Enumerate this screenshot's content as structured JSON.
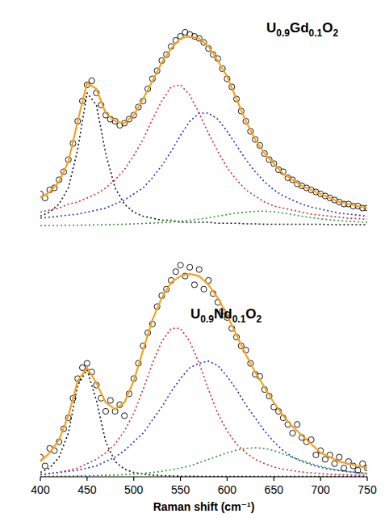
{
  "chart_data": [
    {
      "type": "line",
      "title": "U0.9Gd0.1O2",
      "xlim": [
        400,
        750
      ],
      "ylim": [
        0,
        100
      ],
      "tick_labels": false,
      "series": [
        {
          "type": "line",
          "line_style": "dotted",
          "color": "#111111",
          "x": [
            400,
            410,
            420,
            430,
            440,
            450,
            460,
            470,
            480,
            490,
            500,
            510,
            520,
            530,
            540,
            550,
            560,
            570,
            580,
            590,
            600,
            610,
            620,
            630,
            640,
            650,
            660,
            670,
            680,
            690,
            700,
            710,
            720,
            730,
            740,
            750
          ],
          "values": [
            5,
            7,
            11,
            19,
            38,
            66,
            60,
            36,
            19,
            11,
            7,
            5,
            4,
            3,
            3,
            2,
            2,
            2,
            2,
            1.5,
            1.5,
            1.5,
            1.2,
            1.2,
            1,
            1,
            1,
            1,
            1,
            1,
            1,
            0.8,
            0.8,
            0.8,
            0.8,
            0.8
          ]
        },
        {
          "type": "line",
          "line_style": "dotted",
          "color": "#e8202a",
          "x": [
            400,
            410,
            420,
            430,
            440,
            450,
            460,
            470,
            480,
            490,
            500,
            510,
            520,
            530,
            540,
            550,
            560,
            570,
            580,
            590,
            600,
            610,
            620,
            630,
            640,
            650,
            660,
            670,
            680,
            690,
            700,
            710,
            720,
            730,
            740,
            750
          ],
          "values": [
            7,
            8,
            9,
            11,
            12,
            14,
            16,
            19,
            23,
            28,
            35,
            43,
            53,
            62,
            69,
            70,
            65,
            56,
            46,
            37,
            29,
            23,
            18,
            15,
            12,
            10,
            9,
            8,
            7,
            6,
            5.5,
            5,
            4.5,
            4,
            3.8,
            3.5
          ]
        },
        {
          "type": "line",
          "line_style": "dotted",
          "color": "#1f2fd8",
          "x": [
            400,
            410,
            420,
            430,
            440,
            450,
            460,
            470,
            480,
            490,
            500,
            510,
            520,
            530,
            540,
            550,
            560,
            570,
            580,
            590,
            600,
            610,
            620,
            630,
            640,
            650,
            660,
            670,
            680,
            690,
            700,
            710,
            720,
            730,
            740,
            750
          ],
          "values": [
            4,
            4.5,
            5,
            5.5,
            6,
            7,
            8,
            9,
            11,
            13,
            16,
            19,
            24,
            30,
            37,
            45,
            52,
            56,
            56,
            53,
            47,
            40,
            33,
            27,
            22,
            18,
            15,
            13,
            11,
            9.5,
            8.5,
            7.5,
            6.5,
            6,
            5.5,
            5
          ]
        },
        {
          "type": "line",
          "line_style": "dotted",
          "color": "#2a9a2a",
          "x": [
            400,
            410,
            420,
            430,
            440,
            450,
            460,
            470,
            480,
            490,
            500,
            510,
            520,
            530,
            540,
            550,
            560,
            570,
            580,
            590,
            600,
            610,
            620,
            630,
            640,
            650,
            660,
            670,
            680,
            690,
            700,
            710,
            720,
            730,
            740,
            750
          ],
          "values": [
            0.3,
            0.4,
            0.4,
            0.5,
            0.5,
            0.6,
            0.7,
            0.8,
            0.9,
            1,
            1.2,
            1.4,
            1.6,
            1.8,
            2.1,
            2.5,
            3,
            3.5,
            4.2,
            5,
            5.8,
            6.5,
            7,
            7.4,
            7.5,
            7.2,
            6.5,
            5.8,
            5,
            4.3,
            3.7,
            3.2,
            2.8,
            2.5,
            2.2,
            2
          ]
        },
        {
          "type": "scatter",
          "marker": "circle",
          "color": "#000000",
          "x": [
            400,
            405,
            410,
            415,
            420,
            425,
            430,
            435,
            440,
            445,
            450,
            455,
            460,
            465,
            470,
            475,
            480,
            485,
            490,
            495,
            500,
            505,
            510,
            515,
            520,
            525,
            530,
            535,
            540,
            545,
            550,
            555,
            560,
            565,
            570,
            575,
            580,
            585,
            590,
            595,
            600,
            605,
            610,
            615,
            620,
            625,
            630,
            635,
            640,
            645,
            650,
            655,
            660,
            665,
            670,
            675,
            680,
            685,
            690,
            695,
            700,
            705,
            710,
            715,
            720,
            725,
            730,
            735,
            740,
            745,
            750
          ],
          "values": [
            16,
            14,
            18,
            19,
            23,
            27,
            33,
            41,
            52,
            62,
            70,
            72,
            66,
            60,
            55,
            53,
            52,
            50,
            51,
            53,
            55,
            59,
            62,
            68,
            73,
            77,
            82,
            85,
            89,
            92,
            94,
            96,
            95,
            94,
            93,
            91,
            88,
            85,
            83,
            78,
            73,
            69,
            63,
            57,
            52,
            47,
            43,
            40,
            36,
            33,
            31,
            28,
            27,
            24,
            23,
            21,
            20,
            19,
            18,
            17,
            16,
            15,
            14,
            13,
            12,
            11,
            11,
            10,
            10,
            9,
            9
          ]
        },
        {
          "type": "line",
          "line_style": "solid",
          "color": "#f5a31f",
          "x": [
            400,
            410,
            420,
            430,
            440,
            450,
            460,
            470,
            480,
            490,
            500,
            510,
            520,
            530,
            540,
            550,
            560,
            570,
            580,
            590,
            600,
            610,
            620,
            630,
            640,
            650,
            660,
            670,
            680,
            690,
            700,
            710,
            720,
            730,
            740,
            750
          ],
          "values": [
            14,
            17,
            22,
            32,
            52,
            71,
            68,
            56,
            52,
            51,
            55,
            63,
            72,
            81,
            88,
            93,
            94,
            93,
            89,
            82,
            74,
            63,
            52,
            43,
            36,
            31,
            26,
            23,
            20,
            18,
            16,
            14,
            12,
            11,
            10,
            9
          ]
        }
      ]
    },
    {
      "type": "line",
      "title": "U0.9Nd0.1O2",
      "x_label": "Raman shift (cm⁻¹)",
      "xlim": [
        400,
        750
      ],
      "ylim": [
        0,
        100
      ],
      "xticks": [
        400,
        450,
        500,
        550,
        600,
        650,
        700,
        750
      ],
      "tick_labels": "x",
      "series": [
        {
          "type": "line",
          "line_style": "dotted",
          "color": "#111111",
          "x": [
            400,
            410,
            420,
            430,
            440,
            450,
            460,
            470,
            480,
            490,
            500,
            510,
            520,
            530,
            540,
            550,
            560,
            570,
            580,
            590,
            600,
            610,
            620,
            630,
            640,
            650,
            660,
            670,
            680,
            690,
            700,
            710,
            720,
            730,
            740,
            750
          ],
          "values": [
            2,
            4,
            9,
            20,
            42,
            49,
            35,
            16,
            7,
            3.5,
            2,
            1.2,
            0.8,
            0.5,
            0.4,
            0.3,
            0.3,
            0.2,
            0.2,
            0.2,
            0.2,
            0.2,
            0.2,
            0.2,
            0.2,
            0.2,
            0.2,
            0.2,
            0.2,
            0.2,
            0.2,
            0.2,
            0.2,
            0.2,
            0.2,
            0.2
          ]
        },
        {
          "type": "line",
          "line_style": "dotted",
          "color": "#e8202a",
          "x": [
            400,
            410,
            420,
            430,
            440,
            450,
            460,
            470,
            480,
            490,
            500,
            510,
            520,
            530,
            540,
            550,
            560,
            570,
            580,
            590,
            600,
            610,
            620,
            630,
            640,
            650,
            660,
            670,
            680,
            690,
            700,
            710,
            720,
            730,
            740,
            750
          ],
          "values": [
            1,
            1.5,
            2,
            3,
            4,
            6,
            8,
            11,
            15,
            21,
            29,
            40,
            52,
            62,
            68,
            68,
            62,
            52,
            40,
            29,
            21,
            15,
            11,
            8,
            6,
            4.5,
            3.5,
            2.8,
            2.2,
            1.8,
            1.5,
            1.2,
            1,
            0.9,
            0.8,
            0.7
          ]
        },
        {
          "type": "line",
          "line_style": "dotted",
          "color": "#1f2fd8",
          "x": [
            400,
            410,
            420,
            430,
            440,
            450,
            460,
            470,
            480,
            490,
            500,
            510,
            520,
            530,
            540,
            550,
            560,
            570,
            580,
            590,
            600,
            610,
            620,
            630,
            640,
            650,
            660,
            670,
            680,
            690,
            700,
            710,
            720,
            730,
            740,
            750
          ],
          "values": [
            1,
            1.5,
            2,
            2.5,
            3,
            4,
            5,
            7,
            9,
            12,
            16,
            20,
            26,
            32,
            39,
            45,
            50,
            52,
            53,
            51,
            46,
            40,
            33,
            27,
            21,
            16,
            12,
            9,
            7,
            5.5,
            4.3,
            3.5,
            2.8,
            2.3,
            1.9,
            1.6
          ]
        },
        {
          "type": "line",
          "line_style": "dotted",
          "color": "#2a9a2a",
          "x": [
            400,
            410,
            420,
            430,
            440,
            450,
            460,
            470,
            480,
            490,
            500,
            510,
            520,
            530,
            540,
            550,
            560,
            570,
            580,
            590,
            600,
            610,
            620,
            630,
            640,
            650,
            660,
            670,
            680,
            690,
            700,
            710,
            720,
            730,
            740,
            750
          ],
          "values": [
            0.2,
            0.2,
            0.3,
            0.3,
            0.4,
            0.5,
            0.6,
            0.7,
            0.8,
            1,
            1.2,
            1.5,
            2,
            2.5,
            3.2,
            4,
            5,
            6.5,
            8,
            9.5,
            11,
            12.2,
            13,
            13.3,
            13,
            12,
            10.5,
            9,
            7.5,
            6,
            4.8,
            3.8,
            3,
            2.4,
            1.9,
            1.5
          ]
        },
        {
          "type": "scatter",
          "marker": "circle",
          "color": "#000000",
          "x": [
            400,
            405,
            410,
            415,
            420,
            425,
            430,
            435,
            440,
            445,
            450,
            455,
            460,
            465,
            470,
            475,
            480,
            485,
            490,
            495,
            500,
            505,
            510,
            515,
            520,
            525,
            530,
            535,
            540,
            545,
            550,
            555,
            560,
            565,
            570,
            575,
            580,
            585,
            590,
            595,
            600,
            605,
            610,
            615,
            620,
            625,
            630,
            635,
            640,
            645,
            650,
            655,
            660,
            665,
            670,
            675,
            680,
            685,
            690,
            695,
            700,
            705,
            710,
            715,
            720,
            725,
            730,
            735,
            740,
            745,
            750
          ],
          "values": [
            9,
            5,
            13,
            12,
            16,
            22,
            27,
            36,
            45,
            50,
            52,
            48,
            42,
            36,
            30,
            35,
            30,
            33,
            28,
            38,
            45,
            52,
            60,
            66,
            70,
            78,
            83,
            86,
            90,
            94,
            97,
            92,
            96,
            88,
            95,
            86,
            90,
            84,
            80,
            76,
            73,
            68,
            64,
            60,
            58,
            52,
            47,
            46,
            40,
            37,
            32,
            30,
            27,
            24,
            20,
            24,
            18,
            16,
            17,
            10,
            12,
            8,
            10,
            6,
            9,
            4,
            7,
            5,
            3,
            6,
            4
          ]
        },
        {
          "type": "line",
          "line_style": "solid",
          "color": "#f5a31f",
          "x": [
            400,
            410,
            420,
            430,
            440,
            450,
            460,
            470,
            480,
            490,
            500,
            510,
            520,
            530,
            540,
            550,
            560,
            570,
            580,
            590,
            600,
            610,
            620,
            630,
            640,
            650,
            660,
            670,
            680,
            690,
            700,
            710,
            720,
            730,
            740,
            750
          ],
          "values": [
            7,
            11,
            17,
            28,
            44,
            50,
            43,
            34,
            31,
            34,
            44,
            58,
            72,
            82,
            89,
            92,
            93,
            92,
            88,
            82,
            74,
            65,
            56,
            48,
            41,
            34,
            28,
            23,
            19,
            15,
            11,
            9,
            7,
            6,
            5,
            4
          ]
        }
      ]
    }
  ]
}
